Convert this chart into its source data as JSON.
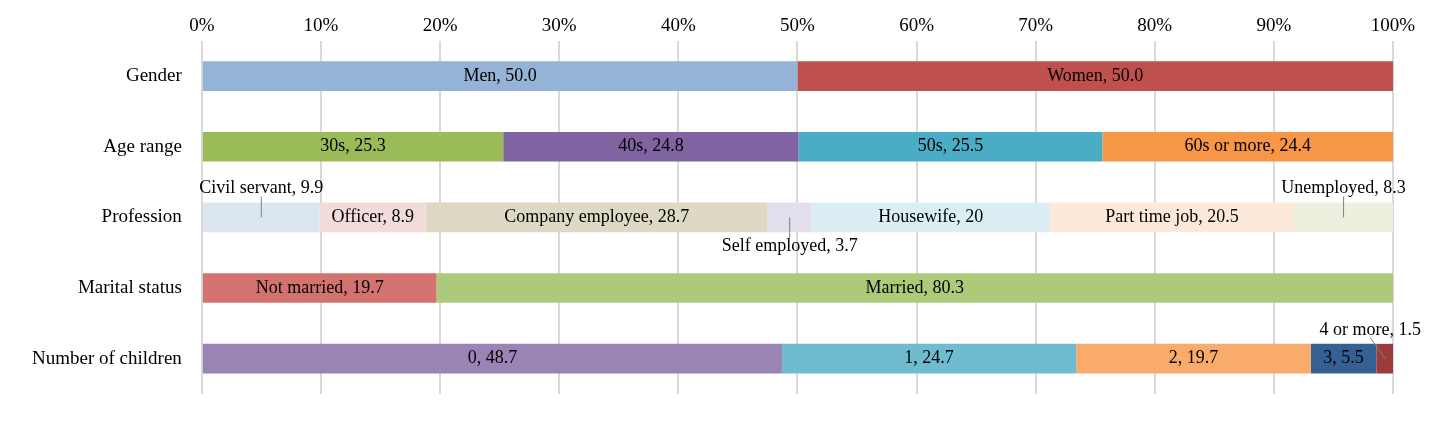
{
  "chart_data": {
    "type": "bar",
    "orientation": "horizontal",
    "stacked": true,
    "legend": false,
    "grid": "x",
    "categories": [
      "Gender",
      "Age range",
      "Profession",
      "Marital status",
      "Number of children"
    ],
    "xlim": [
      0,
      100
    ],
    "xticks": [
      {
        "value": 0,
        "label": "0%"
      },
      {
        "value": 10,
        "label": "10%"
      },
      {
        "value": 20,
        "label": "20%"
      },
      {
        "value": 30,
        "label": "30%"
      },
      {
        "value": 40,
        "label": "40%"
      },
      {
        "value": 50,
        "label": "50%"
      },
      {
        "value": 60,
        "label": "60%"
      },
      {
        "value": 70,
        "label": "70%"
      },
      {
        "value": 80,
        "label": "80%"
      },
      {
        "value": 90,
        "label": "90%"
      },
      {
        "value": 100,
        "label": "100%"
      }
    ],
    "series": [
      {
        "color": "#95b3d7",
        "values": [
          50.0,
          null,
          null,
          null,
          null
        ],
        "value_labels": [
          "Men, 50.0",
          null,
          null,
          null,
          null
        ]
      },
      {
        "color": "#c0504d",
        "values": [
          50.0,
          null,
          null,
          null,
          null
        ],
        "value_labels": [
          "Women, 50.0",
          null,
          null,
          null,
          null
        ]
      },
      {
        "color": "#9bbb59",
        "values": [
          null,
          25.3,
          null,
          null,
          null
        ],
        "value_labels": [
          null,
          "30s, 25.3",
          null,
          null,
          null
        ]
      },
      {
        "color": "#8064a2",
        "values": [
          null,
          24.8,
          null,
          null,
          null
        ],
        "value_labels": [
          null,
          "40s, 24.8",
          null,
          null,
          null
        ]
      },
      {
        "color": "#4bacc6",
        "values": [
          null,
          25.5,
          null,
          null,
          null
        ],
        "value_labels": [
          null,
          "50s, 25.5",
          null,
          null,
          null
        ]
      },
      {
        "color": "#f79646",
        "values": [
          null,
          24.4,
          null,
          null,
          null
        ],
        "value_labels": [
          null,
          "60s or more, 24.4",
          null,
          null,
          null
        ]
      },
      {
        "color": "#dce6f1",
        "values": [
          null,
          null,
          9.9,
          null,
          null
        ],
        "value_labels": [
          null,
          null,
          "Civil servant, 9.9",
          null,
          null
        ]
      },
      {
        "color": "#f2dcdb",
        "values": [
          null,
          null,
          8.9,
          null,
          null
        ],
        "value_labels": [
          null,
          null,
          "Officer, 8.9",
          null,
          null
        ]
      },
      {
        "color": "#ddd9c4",
        "values": [
          null,
          null,
          28.7,
          null,
          null
        ],
        "value_labels": [
          null,
          null,
          "Company employee, 28.7",
          null,
          null
        ]
      },
      {
        "color": "#e4dfec",
        "values": [
          null,
          null,
          3.7,
          null,
          null
        ],
        "value_labels": [
          null,
          null,
          "Self employed, 3.7",
          null,
          null
        ]
      },
      {
        "color": "#daeef3",
        "values": [
          null,
          null,
          20,
          null,
          null
        ],
        "value_labels": [
          null,
          null,
          "Housewife, 20",
          null,
          null
        ]
      },
      {
        "color": "#fde9d9",
        "values": [
          null,
          null,
          20.5,
          null,
          null
        ],
        "value_labels": [
          null,
          null,
          "Part time job, 20.5",
          null,
          null
        ]
      },
      {
        "color": "#ebf1de",
        "values": [
          null,
          null,
          8.3,
          null,
          null
        ],
        "value_labels": [
          null,
          null,
          "Unemployed, 8.3",
          null,
          null
        ]
      },
      {
        "color": "#d2736f",
        "values": [
          null,
          null,
          null,
          19.7,
          null
        ],
        "value_labels": [
          null,
          null,
          null,
          "Not married, 19.7",
          null
        ]
      },
      {
        "color": "#adc97a",
        "values": [
          null,
          null,
          null,
          80.3,
          null
        ],
        "value_labels": [
          null,
          null,
          null,
          "Married, 80.3",
          null
        ]
      },
      {
        "color": "#9a83b5",
        "values": [
          null,
          null,
          null,
          null,
          48.7
        ],
        "value_labels": [
          null,
          null,
          null,
          null,
          "0, 48.7"
        ]
      },
      {
        "color": "#6fbcd0",
        "values": [
          null,
          null,
          null,
          null,
          24.7
        ],
        "value_labels": [
          null,
          null,
          null,
          null,
          "1, 24.7"
        ]
      },
      {
        "color": "#f9ab6c",
        "values": [
          null,
          null,
          null,
          null,
          19.7
        ],
        "value_labels": [
          null,
          null,
          null,
          null,
          "2, 19.7"
        ]
      },
      {
        "color": "#366092",
        "values": [
          null,
          null,
          null,
          null,
          5.5
        ],
        "value_labels": [
          null,
          null,
          null,
          null,
          "3, 5.5"
        ]
      },
      {
        "color": "#9c3c3a",
        "values": [
          null,
          null,
          null,
          null,
          1.5
        ],
        "value_labels": [
          null,
          null,
          null,
          null,
          "4 or more, 1.5"
        ]
      }
    ]
  }
}
